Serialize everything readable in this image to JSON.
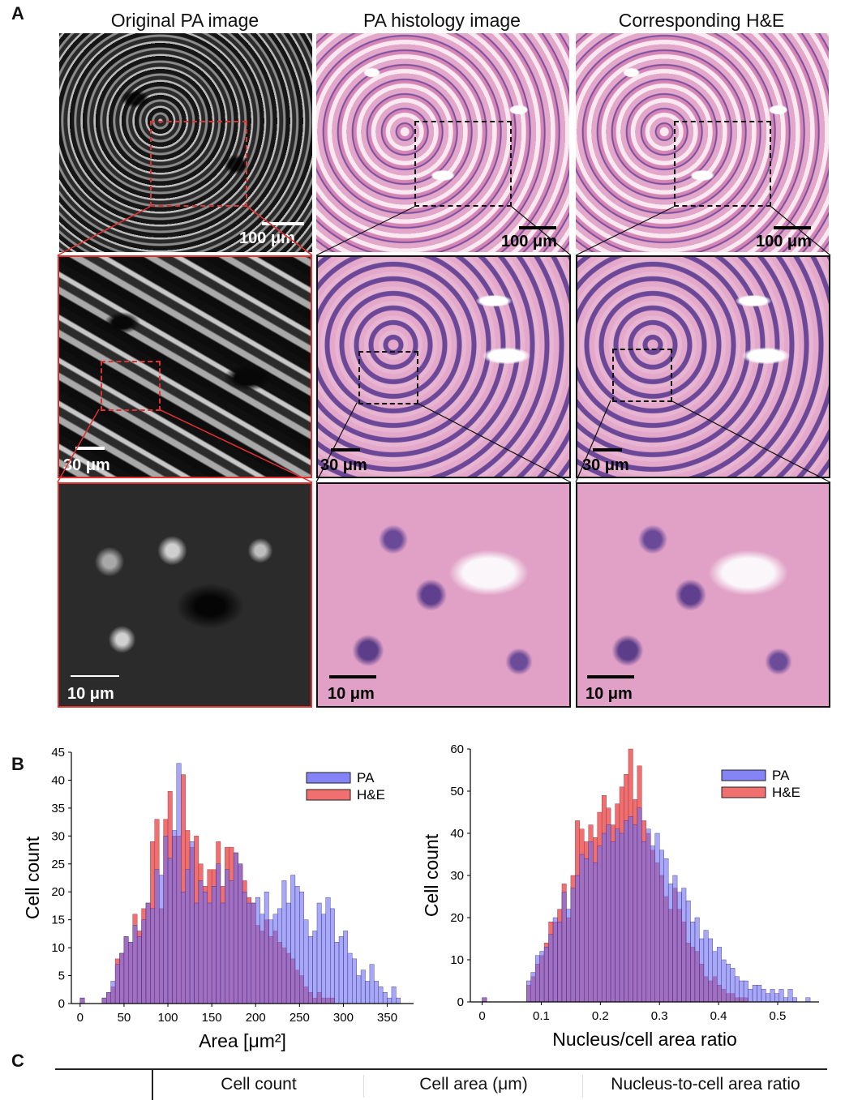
{
  "panel_labels": {
    "a": "A",
    "b": "B",
    "c": "C"
  },
  "columns": {
    "pa_original": "Original PA image",
    "pa_histology": "PA histology image",
    "he": "Corresponding H&E"
  },
  "scale_bars": {
    "row1_pa": "100 μm",
    "row1_hist": "100 μm",
    "row1_he": "100 μm",
    "row2_pa": "30 μm",
    "row2_hist": "30 μm",
    "row2_he": "30 μm",
    "row3_pa": "10 μm",
    "row3_hist": "10 μm",
    "row3_he": "10 μm"
  },
  "colors": {
    "pa": "#6e6ef5",
    "he": "#f07070",
    "overlap": "#a5306a",
    "red_box": "#e03030"
  },
  "chart_data": [
    {
      "type": "bar",
      "title": "",
      "xlabel": "Area [μm²]",
      "ylabel": "Cell count",
      "xlim": [
        -10,
        380
      ],
      "ylim": [
        0,
        45
      ],
      "xticks": [
        0,
        50,
        100,
        150,
        200,
        250,
        300,
        350
      ],
      "yticks": [
        0,
        5,
        10,
        15,
        20,
        25,
        30,
        35,
        40,
        45
      ],
      "bin_width": 5,
      "legend_position": "top-right",
      "bin_start": [
        0,
        25,
        30,
        35,
        40,
        45,
        50,
        55,
        60,
        65,
        70,
        75,
        80,
        85,
        90,
        95,
        100,
        105,
        110,
        115,
        120,
        125,
        130,
        135,
        140,
        145,
        150,
        155,
        160,
        165,
        170,
        175,
        180,
        185,
        190,
        195,
        200,
        205,
        210,
        215,
        220,
        225,
        230,
        235,
        240,
        245,
        250,
        255,
        260,
        265,
        270,
        275,
        280,
        285,
        290,
        295,
        300,
        305,
        310,
        315,
        320,
        325,
        330,
        335,
        340,
        345,
        350,
        355,
        360
      ],
      "series": [
        {
          "name": "PA",
          "values": [
            1,
            1,
            2,
            4,
            7,
            9,
            12,
            11,
            14,
            12,
            15,
            18,
            17,
            24,
            23,
            30,
            26,
            31,
            43,
            20,
            24,
            29,
            18,
            22,
            20,
            18,
            21,
            25,
            18,
            24,
            22,
            27,
            25,
            20,
            18,
            18,
            19,
            16,
            20,
            15,
            16,
            17,
            22,
            18,
            23,
            21,
            20,
            15,
            12,
            13,
            18,
            16,
            19,
            17,
            11,
            12,
            13,
            9,
            8,
            5,
            6,
            4,
            7,
            4,
            3,
            2,
            1,
            3,
            1
          ]
        },
        {
          "name": "H&E",
          "values": [
            1,
            1,
            2,
            3,
            8,
            9,
            12,
            11,
            16,
            13,
            17,
            18,
            29,
            33,
            17,
            33,
            38,
            30,
            30,
            41,
            31,
            28,
            30,
            25,
            21,
            24,
            24,
            29,
            21,
            28,
            28,
            27,
            25,
            22,
            19,
            18,
            14,
            13,
            15,
            12,
            13,
            11,
            10,
            9,
            8,
            6,
            5,
            3,
            2,
            1,
            2,
            1,
            1,
            1,
            0,
            0,
            0,
            0,
            0,
            0,
            0,
            0,
            0,
            0,
            0,
            0,
            0,
            0,
            0
          ]
        }
      ]
    },
    {
      "type": "bar",
      "title": "",
      "xlabel": "Nucleus/cell area ratio",
      "ylabel": "Cell count",
      "xlim": [
        -0.02,
        0.57
      ],
      "ylim": [
        0,
        60
      ],
      "xticks": [
        0,
        0.1,
        0.2,
        0.3,
        0.4,
        0.5
      ],
      "yticks": [
        0,
        10,
        20,
        30,
        40,
        50,
        60
      ],
      "bin_width": 0.0075,
      "legend_position": "top-right",
      "bin_start": [
        0,
        0.075,
        0.0825,
        0.09,
        0.0975,
        0.105,
        0.1125,
        0.12,
        0.1275,
        0.135,
        0.1425,
        0.15,
        0.1575,
        0.165,
        0.1725,
        0.18,
        0.1875,
        0.195,
        0.2025,
        0.21,
        0.2175,
        0.225,
        0.2325,
        0.24,
        0.2475,
        0.255,
        0.2625,
        0.27,
        0.2775,
        0.285,
        0.2925,
        0.3,
        0.3075,
        0.315,
        0.3225,
        0.33,
        0.3375,
        0.345,
        0.3525,
        0.36,
        0.3675,
        0.375,
        0.3825,
        0.39,
        0.3975,
        0.405,
        0.4125,
        0.42,
        0.4275,
        0.435,
        0.4425,
        0.45,
        0.4575,
        0.465,
        0.4725,
        0.48,
        0.4875,
        0.495,
        0.5025,
        0.51,
        0.5175,
        0.525,
        0.5475
      ],
      "series": [
        {
          "name": "PA",
          "values": [
            1,
            5,
            7,
            11,
            12,
            13,
            16,
            20,
            19,
            26,
            22,
            27,
            30,
            35,
            34,
            38,
            33,
            37,
            40,
            42,
            38,
            41,
            40,
            43,
            44,
            42,
            46,
            38,
            41,
            37,
            40,
            36,
            34,
            28,
            30,
            26,
            27,
            24,
            19,
            20,
            15,
            17,
            15,
            12,
            13,
            10,
            9,
            8,
            6,
            5,
            5,
            3,
            4,
            4,
            3,
            2,
            3,
            2,
            3,
            1,
            3,
            1,
            1
          ]
        },
        {
          "name": "H&E",
          "values": [
            1,
            4,
            6,
            9,
            11,
            14,
            19,
            19,
            22,
            28,
            20,
            30,
            43,
            41,
            38,
            42,
            39,
            45,
            49,
            46,
            42,
            47,
            51,
            54,
            60,
            48,
            56,
            43,
            40,
            36,
            33,
            30,
            25,
            22,
            27,
            22,
            19,
            14,
            13,
            12,
            9,
            6,
            5,
            6,
            4,
            3,
            2,
            2,
            1,
            1,
            1,
            0,
            0,
            0,
            0,
            0,
            0,
            0,
            0,
            0,
            0,
            0,
            0
          ]
        }
      ]
    }
  ],
  "table": {
    "headers": [
      "",
      "Cell count",
      "Cell area (μm)",
      "Nucleus-to-cell area ratio"
    ]
  }
}
